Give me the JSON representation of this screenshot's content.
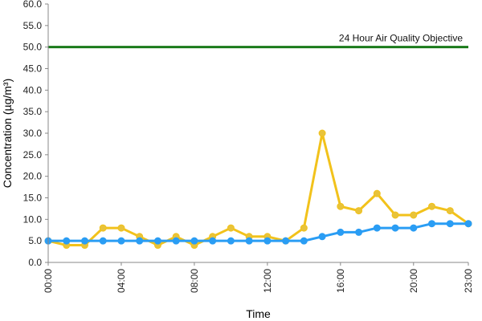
{
  "chart_data": {
    "type": "line",
    "xlabel": "Time",
    "ylabel": "Concentration (µg/m³)",
    "ylim": [
      0,
      60
    ],
    "yticks": [
      "0.0",
      "5.0",
      "10.0",
      "15.0",
      "20.0",
      "25.0",
      "30.0",
      "35.0",
      "40.0",
      "45.0",
      "50.0",
      "55.0",
      "60.0"
    ],
    "x_range": [
      0,
      23
    ],
    "xtick_positions": [
      0,
      4,
      8,
      12,
      16,
      20,
      23
    ],
    "xticks": [
      "00:00",
      "04:00",
      "08:00",
      "12:00",
      "16:00",
      "20:00",
      "23:00"
    ],
    "grid": false,
    "legend": "none",
    "reference_line": {
      "label": "24 Hour Air Quality Objective",
      "value": 50,
      "color": "#1a7a1a"
    },
    "series": [
      {
        "color": "#f2c21b",
        "marker_fill": "#e8c33a",
        "x": [
          0,
          1,
          2,
          3,
          4,
          5,
          6,
          7,
          8,
          9,
          10,
          11,
          12,
          13,
          14,
          15,
          16,
          17,
          18,
          19,
          20,
          21,
          22,
          23
        ],
        "values": [
          5,
          4,
          4,
          8,
          8,
          6,
          4,
          6,
          4,
          6,
          8,
          6,
          6,
          5,
          8,
          30,
          13,
          12,
          16,
          11,
          11,
          13,
          12,
          9
        ]
      },
      {
        "color": "#2a9df4",
        "marker_fill": "#2a9df4",
        "x": [
          0,
          1,
          2,
          3,
          4,
          5,
          6,
          7,
          8,
          9,
          10,
          11,
          12,
          13,
          14,
          15,
          16,
          17,
          18,
          19,
          20,
          21,
          22,
          23
        ],
        "values": [
          5,
          5,
          5,
          5,
          5,
          5,
          5,
          5,
          5,
          5,
          5,
          5,
          5,
          5,
          5,
          6,
          7,
          7,
          8,
          8,
          8,
          9,
          9,
          9
        ]
      }
    ]
  }
}
